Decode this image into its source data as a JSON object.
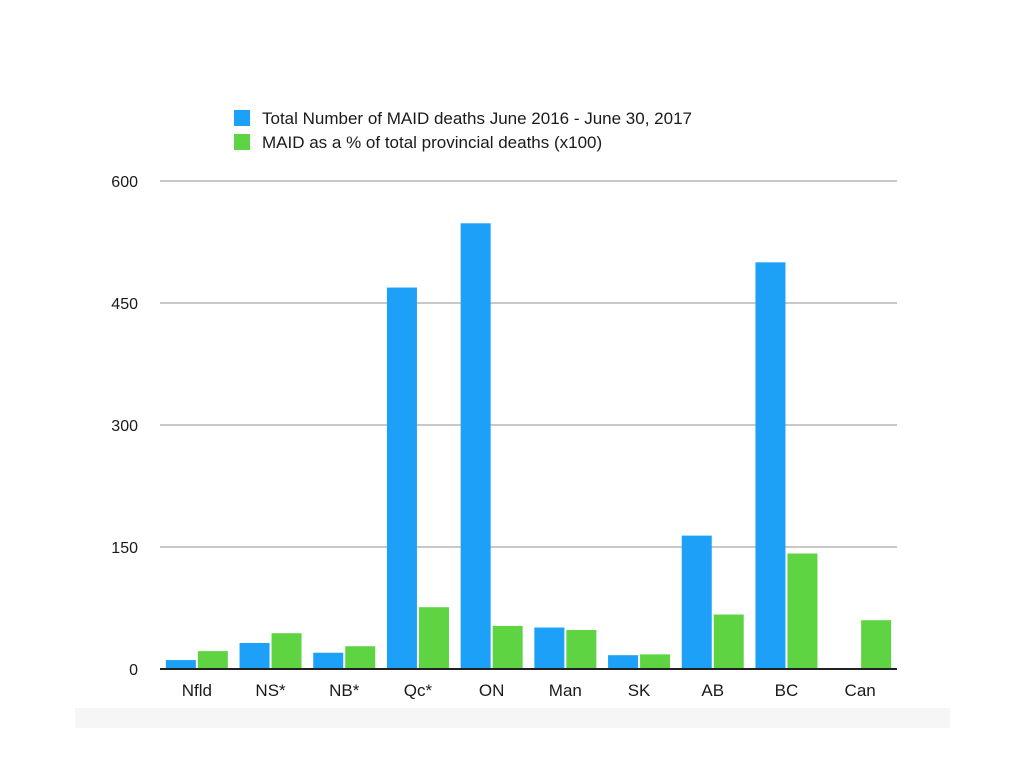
{
  "chart_data": {
    "type": "bar",
    "categories": [
      "Nfld",
      "NS*",
      "NB*",
      "Qc*",
      "ON",
      "Man",
      "SK",
      "AB",
      "BC",
      "Can"
    ],
    "series": [
      {
        "name": "Total Number of MAID deaths June 2016 - June 30, 2017",
        "color": "#1da1f8",
        "values": [
          11,
          32,
          20,
          469,
          548,
          51,
          17,
          164,
          500,
          0
        ]
      },
      {
        "name": "MAID as a % of total provincial deaths (x100)",
        "color": "#5fd443",
        "values": [
          22,
          44,
          28,
          76,
          53,
          48,
          18,
          67,
          142,
          60
        ]
      }
    ],
    "yticks": [
      0,
      150,
      300,
      450,
      600
    ],
    "ylim": [
      0,
      600
    ],
    "grid": true,
    "legend_position": "top-center",
    "title": "",
    "xlabel": "",
    "ylabel": ""
  }
}
